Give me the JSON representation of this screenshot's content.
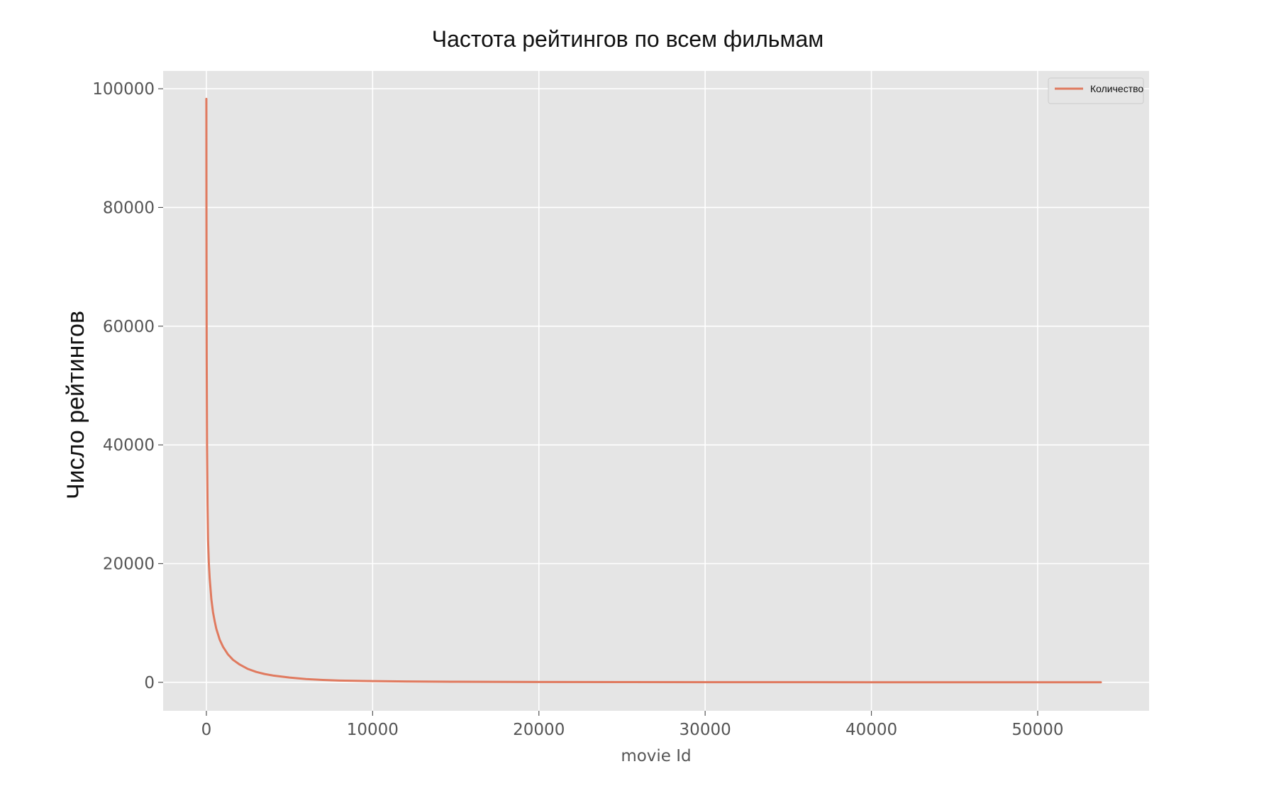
{
  "chart_data": {
    "type": "line",
    "title": "Частота рейтингов по всем фильмам",
    "xlabel": "movie Id",
    "ylabel": "Число рейтингов",
    "xlim": [
      -2600,
      56700
    ],
    "ylim": [
      -4800,
      103000
    ],
    "xticks": [
      0,
      10000,
      20000,
      30000,
      40000,
      50000
    ],
    "yticks": [
      0,
      20000,
      40000,
      60000,
      80000,
      100000
    ],
    "grid": true,
    "legend_position": "top-right",
    "colors": {
      "background": "#e5e5e5",
      "grid": "#ffffff",
      "line": "#e07a5f"
    },
    "series": [
      {
        "name": "Количество",
        "x": [
          0,
          5,
          10,
          20,
          40,
          70,
          100,
          150,
          200,
          300,
          400,
          500,
          600,
          800,
          1000,
          1300,
          1600,
          2000,
          2500,
          3000,
          3500,
          4000,
          5000,
          6000,
          7000,
          8000,
          10000,
          12000,
          15000,
          20000,
          25000,
          30000,
          35000,
          40000,
          45000,
          50000,
          53800
        ],
        "y": [
          98300,
          80000,
          70000,
          55000,
          40000,
          30000,
          24000,
          20000,
          17500,
          14000,
          11800,
          10300,
          9000,
          7200,
          6000,
          4700,
          3800,
          3000,
          2250,
          1750,
          1400,
          1150,
          800,
          550,
          400,
          300,
          200,
          150,
          100,
          60,
          40,
          30,
          20,
          15,
          10,
          8,
          5
        ]
      }
    ]
  }
}
